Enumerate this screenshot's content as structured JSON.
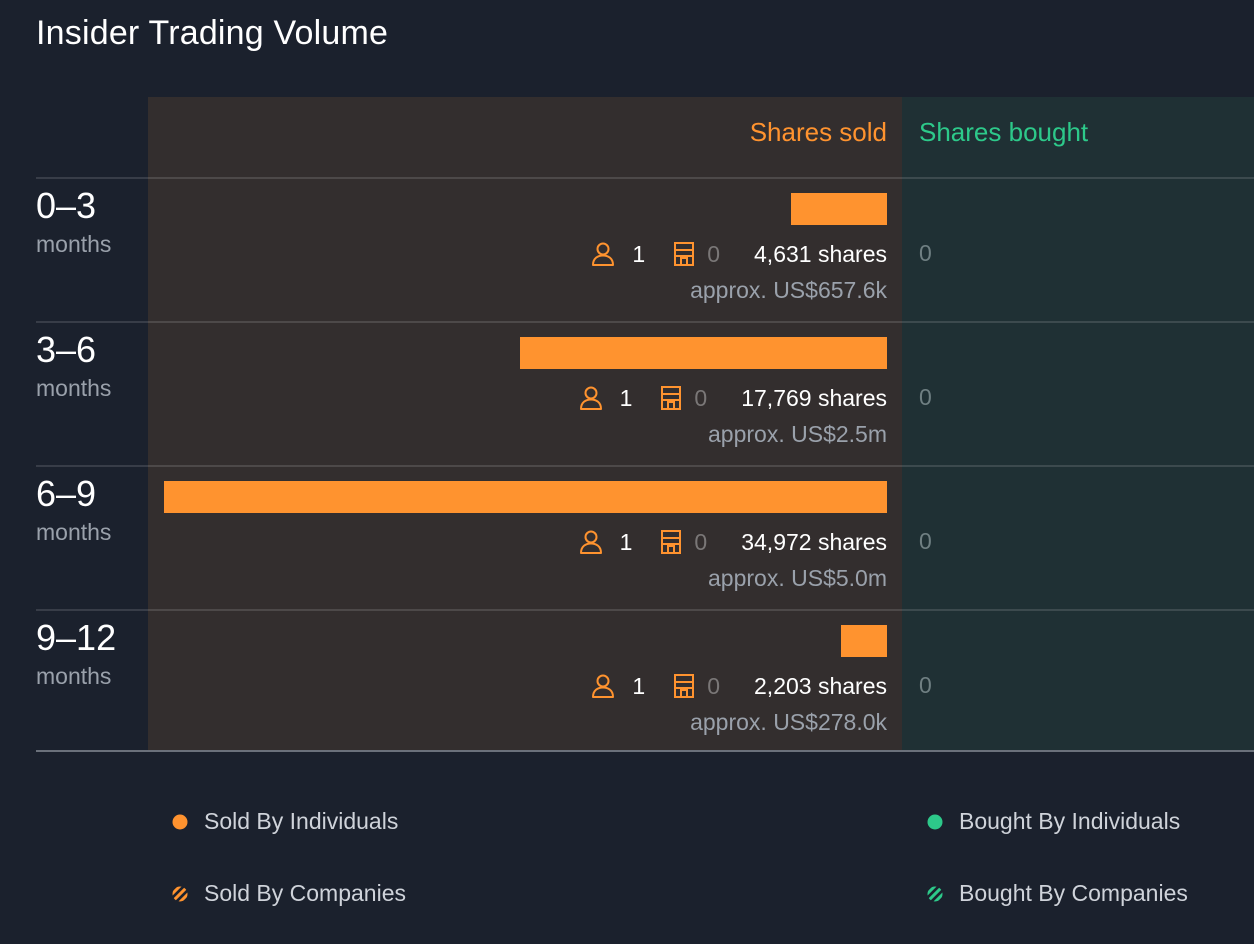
{
  "title": "Insider Trading Volume",
  "headers": {
    "sold": "Shares sold",
    "bought": "Shares bought"
  },
  "colors": {
    "sold": "#ff932f",
    "bought": "#2dc98a",
    "background": "#1b212d"
  },
  "rows": [
    {
      "range": "0–3",
      "unit": "months",
      "individuals": "1",
      "companies": "0",
      "shares": "4,631 shares",
      "approx": "approx. US$657.6k",
      "bought": "0"
    },
    {
      "range": "3–6",
      "unit": "months",
      "individuals": "1",
      "companies": "0",
      "shares": "17,769 shares",
      "approx": "approx. US$2.5m",
      "bought": "0"
    },
    {
      "range": "6–9",
      "unit": "months",
      "individuals": "1",
      "companies": "0",
      "shares": "34,972 shares",
      "approx": "approx. US$5.0m",
      "bought": "0"
    },
    {
      "range": "9–12",
      "unit": "months",
      "individuals": "1",
      "companies": "0",
      "shares": "2,203 shares",
      "approx": "approx. US$278.0k",
      "bought": "0"
    }
  ],
  "legend": {
    "sold_individuals": "Sold By Individuals",
    "sold_companies": "Sold By Companies",
    "bought_individuals": "Bought By Individuals",
    "bought_companies": "Bought By Companies"
  },
  "chart_data": {
    "type": "bar",
    "orientation": "horizontal",
    "categories": [
      "0–3 months",
      "3–6 months",
      "6–9 months",
      "9–12 months"
    ],
    "series": [
      {
        "name": "Shares sold",
        "values": [
          4631,
          17769,
          34972,
          2203
        ]
      },
      {
        "name": "Shares bought",
        "values": [
          0,
          0,
          0,
          0
        ]
      }
    ],
    "title": "Insider Trading Volume",
    "legend_position": "bottom"
  }
}
